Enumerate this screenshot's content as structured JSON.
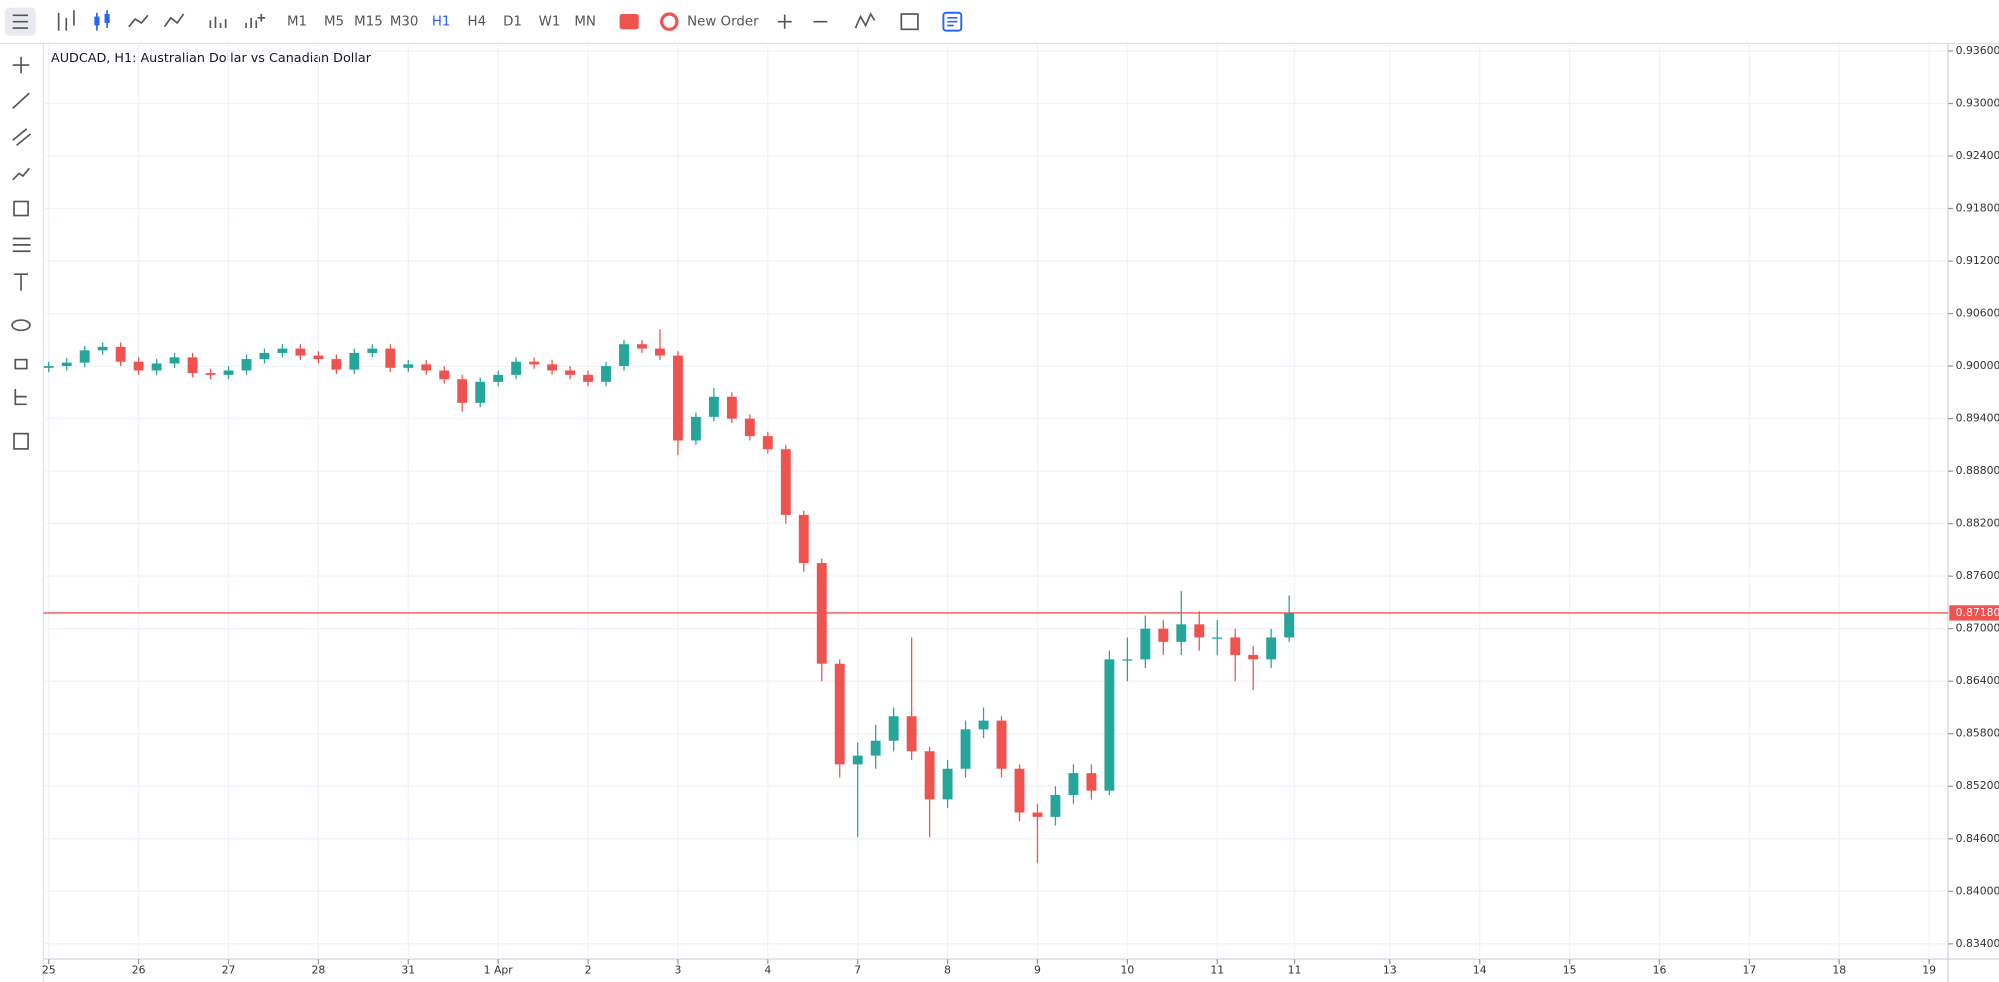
{
  "toolbar": {
    "timeframes": [
      "M1",
      "M5",
      "M15",
      "M30",
      "H1",
      "H4",
      "D1",
      "W1",
      "MN"
    ],
    "active_timeframe": 4,
    "new_order": "New Order"
  },
  "chart_data": {
    "type": "candlestick",
    "title": "AUDCAD, H1: Australian Dollar vs Canadian Dollar",
    "up_color": "#26a69a",
    "down_color": "#ef5350",
    "grid": true,
    "x": [
      0,
      0.2,
      0.4,
      0.6,
      0.8,
      1,
      1.2,
      1.4,
      1.6,
      1.8,
      2,
      2.2,
      2.4,
      2.6,
      2.8,
      3,
      3.2,
      3.4,
      3.6,
      3.8,
      4,
      4.2,
      4.4,
      4.6,
      4.8,
      5,
      5.2,
      5.4,
      5.6,
      5.8,
      6,
      6.2,
      6.4,
      6.6,
      6.8,
      7,
      7.2,
      7.4,
      7.6,
      7.8,
      8,
      8.2,
      8.4,
      8.6,
      8.8,
      9,
      9.2,
      9.4,
      9.6,
      9.8,
      10,
      10.2,
      10.4,
      10.6,
      10.8,
      11,
      11.2,
      11.4,
      11.6,
      11.8,
      12,
      12.2,
      12.4,
      12.6,
      12.8,
      13,
      13.2,
      13.4,
      13.6,
      13.8
    ],
    "open": [
      0.8998,
      0.9,
      0.9004,
      0.9018,
      0.9022,
      0.9005,
      0.8995,
      0.9003,
      0.901,
      0.8992,
      0.899,
      0.8995,
      0.9008,
      0.9015,
      0.902,
      0.9012,
      0.9008,
      0.8996,
      0.9015,
      0.902,
      0.8998,
      0.9002,
      0.8995,
      0.8985,
      0.8958,
      0.8982,
      0.899,
      0.9005,
      0.9002,
      0.8995,
      0.899,
      0.8982,
      0.9,
      0.9025,
      0.902,
      0.9012,
      0.8915,
      0.8942,
      0.8965,
      0.894,
      0.892,
      0.8905,
      0.883,
      0.8775,
      0.866,
      0.8545,
      0.8555,
      0.8572,
      0.86,
      0.856,
      0.8505,
      0.854,
      0.8585,
      0.8595,
      0.854,
      0.849,
      0.8485,
      0.851,
      0.8535,
      0.8515,
      0.8665,
      0.8665,
      0.87,
      0.8685,
      0.8705,
      0.869,
      0.869,
      0.867,
      0.8665,
      0.869
    ],
    "high": [
      0.9005,
      0.9009,
      0.9023,
      0.9027,
      0.9027,
      0.901,
      0.9008,
      0.9015,
      0.9015,
      0.8997,
      0.9,
      0.9013,
      0.902,
      0.9025,
      0.9025,
      0.9017,
      0.9013,
      0.902,
      0.9025,
      0.9025,
      0.9007,
      0.9007,
      0.9,
      0.899,
      0.8987,
      0.8995,
      0.901,
      0.901,
      0.9007,
      0.9,
      0.8995,
      0.9005,
      0.903,
      0.903,
      0.9042,
      0.9017,
      0.8947,
      0.8975,
      0.897,
      0.8945,
      0.8925,
      0.891,
      0.8835,
      0.878,
      0.8665,
      0.857,
      0.859,
      0.861,
      0.869,
      0.8565,
      0.855,
      0.8595,
      0.861,
      0.86,
      0.8545,
      0.85,
      0.852,
      0.8545,
      0.8545,
      0.8675,
      0.869,
      0.8715,
      0.871,
      0.8743,
      0.872,
      0.871,
      0.87,
      0.868,
      0.87,
      0.8738
    ],
    "low": [
      0.8993,
      0.8995,
      0.8999,
      0.9013,
      0.9,
      0.899,
      0.899,
      0.8998,
      0.8987,
      0.8985,
      0.8985,
      0.899,
      0.9003,
      0.901,
      0.9007,
      0.9003,
      0.8991,
      0.8991,
      0.901,
      0.8993,
      0.8993,
      0.899,
      0.898,
      0.8948,
      0.8953,
      0.8977,
      0.8985,
      0.8997,
      0.899,
      0.8985,
      0.8977,
      0.8977,
      0.8995,
      0.9015,
      0.9007,
      0.8898,
      0.891,
      0.8937,
      0.8935,
      0.8915,
      0.89,
      0.882,
      0.8765,
      0.864,
      0.853,
      0.8462,
      0.854,
      0.856,
      0.855,
      0.8462,
      0.8495,
      0.853,
      0.8575,
      0.853,
      0.848,
      0.8432,
      0.8475,
      0.85,
      0.8505,
      0.851,
      0.864,
      0.8655,
      0.867,
      0.867,
      0.8675,
      0.867,
      0.864,
      0.863,
      0.8655,
      0.8685
    ],
    "close": [
      0.9,
      0.9004,
      0.9018,
      0.9022,
      0.9005,
      0.8995,
      0.9003,
      0.901,
      0.8992,
      0.899,
      0.8995,
      0.9008,
      0.9015,
      0.902,
      0.9012,
      0.9008,
      0.8996,
      0.9015,
      0.902,
      0.8998,
      0.9002,
      0.8995,
      0.8985,
      0.8958,
      0.8982,
      0.899,
      0.9005,
      0.9002,
      0.8995,
      0.899,
      0.8982,
      0.9,
      0.9025,
      0.902,
      0.9012,
      0.8915,
      0.8942,
      0.8965,
      0.894,
      0.892,
      0.8905,
      0.883,
      0.8775,
      0.866,
      0.8545,
      0.8555,
      0.8572,
      0.86,
      0.856,
      0.8505,
      0.854,
      0.8585,
      0.8595,
      0.854,
      0.849,
      0.8485,
      0.851,
      0.8535,
      0.8515,
      0.8665,
      0.8665,
      0.87,
      0.8685,
      0.8705,
      0.869,
      0.869,
      0.867,
      0.8665,
      0.869,
      0.8718
    ],
    "last_price": {
      "value": 0.8718,
      "label": "0.87180"
    },
    "last_price_color": "#ef5350",
    "xlim": [
      -0.06,
      21.13
    ],
    "xticks": [
      {
        "value": 0,
        "label": "25"
      },
      {
        "value": 1,
        "label": "26"
      },
      {
        "value": 2,
        "label": "27"
      },
      {
        "value": 3,
        "label": "28"
      },
      {
        "value": 4,
        "label": "31"
      },
      {
        "value": 5,
        "label": "1 Apr"
      },
      {
        "value": 6,
        "label": "2"
      },
      {
        "value": 7,
        "label": "3"
      },
      {
        "value": 8,
        "label": "4"
      },
      {
        "value": 9,
        "label": "7"
      },
      {
        "value": 10,
        "label": "8"
      },
      {
        "value": 11,
        "label": "9"
      },
      {
        "value": 12,
        "label": "10"
      },
      {
        "value": 13,
        "label": "11"
      },
      {
        "value": 13.86,
        "label": "11"
      },
      {
        "value": 14.92,
        "label": "13"
      },
      {
        "value": 15.92,
        "label": "14"
      },
      {
        "value": 16.92,
        "label": "15"
      },
      {
        "value": 17.92,
        "label": "16"
      },
      {
        "value": 18.92,
        "label": "17"
      },
      {
        "value": 19.92,
        "label": "18"
      },
      {
        "value": 20.92,
        "label": "19"
      }
    ],
    "ylim": [
      0.83226,
      0.93687
    ],
    "yticks": [
      {
        "value": 0.936,
        "label": "0.93600"
      },
      {
        "value": 0.93,
        "label": "0.93000"
      },
      {
        "value": 0.924,
        "label": "0.92400"
      },
      {
        "value": 0.918,
        "label": "0.91800"
      },
      {
        "value": 0.912,
        "label": "0.91200"
      },
      {
        "value": 0.906,
        "label": "0.90600"
      },
      {
        "value": 0.9,
        "label": "0.90000"
      },
      {
        "value": 0.894,
        "label": "0.89400"
      },
      {
        "value": 0.888,
        "label": "0.88800"
      },
      {
        "value": 0.882,
        "label": "0.88200"
      },
      {
        "value": 0.876,
        "label": "0.87600"
      },
      {
        "value": 0.87,
        "label": "0.87000"
      },
      {
        "value": 0.864,
        "label": "0.86400"
      },
      {
        "value": 0.858,
        "label": "0.85800"
      },
      {
        "value": 0.852,
        "label": "0.85200"
      },
      {
        "value": 0.846,
        "label": "0.84600"
      },
      {
        "value": 0.84,
        "label": "0.84000"
      },
      {
        "value": 0.834,
        "label": "0.83400"
      }
    ]
  }
}
